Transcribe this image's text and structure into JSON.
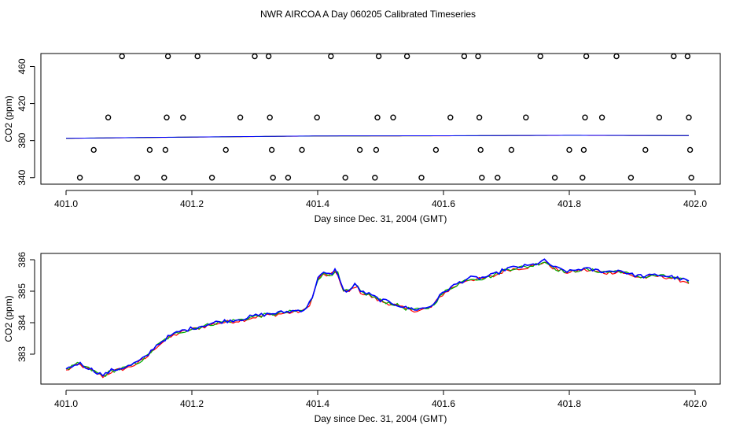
{
  "title": "NWR AIRCOA A  Day 060205  Calibrated Timeseries",
  "chart_data": [
    {
      "type": "scatter",
      "xlabel": "Day since Dec. 31, 2004 (GMT)",
      "ylabel": "CO2 (ppm)",
      "xlim": [
        401.0,
        402.0
      ],
      "ylim": [
        333,
        474
      ],
      "xticks": [
        401.0,
        401.2,
        401.4,
        401.6,
        401.8,
        402.0
      ],
      "xtick_labels": [
        "401.0",
        "401.2",
        "401.4",
        "401.6",
        "401.8",
        "402.0"
      ],
      "yticks": [
        340,
        380,
        420,
        460
      ],
      "ytick_labels": [
        "340",
        "380",
        "420",
        "460"
      ],
      "grid": false,
      "points_color": "#000000",
      "points": [
        {
          "x": 401.022,
          "y": 340
        },
        {
          "x": 401.044,
          "y": 370
        },
        {
          "x": 401.067,
          "y": 405
        },
        {
          "x": 401.089,
          "y": 471
        },
        {
          "x": 401.113,
          "y": 340
        },
        {
          "x": 401.133,
          "y": 370
        },
        {
          "x": 401.156,
          "y": 340
        },
        {
          "x": 401.158,
          "y": 370
        },
        {
          "x": 401.16,
          "y": 405
        },
        {
          "x": 401.162,
          "y": 471
        },
        {
          "x": 401.186,
          "y": 405
        },
        {
          "x": 401.209,
          "y": 471
        },
        {
          "x": 401.232,
          "y": 340
        },
        {
          "x": 401.254,
          "y": 370
        },
        {
          "x": 401.277,
          "y": 405
        },
        {
          "x": 401.3,
          "y": 471
        },
        {
          "x": 401.322,
          "y": 471
        },
        {
          "x": 401.324,
          "y": 405
        },
        {
          "x": 401.327,
          "y": 370
        },
        {
          "x": 401.329,
          "y": 340
        },
        {
          "x": 401.353,
          "y": 340
        },
        {
          "x": 401.375,
          "y": 370
        },
        {
          "x": 401.399,
          "y": 405
        },
        {
          "x": 401.421,
          "y": 471
        },
        {
          "x": 401.444,
          "y": 340
        },
        {
          "x": 401.467,
          "y": 370
        },
        {
          "x": 401.491,
          "y": 340
        },
        {
          "x": 401.493,
          "y": 370
        },
        {
          "x": 401.495,
          "y": 405
        },
        {
          "x": 401.497,
          "y": 471
        },
        {
          "x": 401.52,
          "y": 405
        },
        {
          "x": 401.542,
          "y": 471
        },
        {
          "x": 401.565,
          "y": 340
        },
        {
          "x": 401.588,
          "y": 370
        },
        {
          "x": 401.611,
          "y": 405
        },
        {
          "x": 401.633,
          "y": 471
        },
        {
          "x": 401.655,
          "y": 471
        },
        {
          "x": 401.657,
          "y": 405
        },
        {
          "x": 401.659,
          "y": 370
        },
        {
          "x": 401.661,
          "y": 340
        },
        {
          "x": 401.686,
          "y": 340
        },
        {
          "x": 401.708,
          "y": 370
        },
        {
          "x": 401.731,
          "y": 405
        },
        {
          "x": 401.754,
          "y": 471
        },
        {
          "x": 401.777,
          "y": 340
        },
        {
          "x": 401.8,
          "y": 370
        },
        {
          "x": 401.821,
          "y": 340
        },
        {
          "x": 401.823,
          "y": 370
        },
        {
          "x": 401.825,
          "y": 405
        },
        {
          "x": 401.827,
          "y": 471
        },
        {
          "x": 401.852,
          "y": 405
        },
        {
          "x": 401.875,
          "y": 471
        },
        {
          "x": 401.898,
          "y": 340
        },
        {
          "x": 401.921,
          "y": 370
        },
        {
          "x": 401.943,
          "y": 405
        },
        {
          "x": 401.966,
          "y": 471
        },
        {
          "x": 401.988,
          "y": 471
        },
        {
          "x": 401.99,
          "y": 405
        },
        {
          "x": 401.992,
          "y": 370
        },
        {
          "x": 401.994,
          "y": 340
        }
      ],
      "baseline": {
        "colors": [
          "#ff0000",
          "#00b000",
          "#0000ff"
        ],
        "x": [
          401.0,
          401.2,
          401.4,
          401.6,
          401.8,
          401.99
        ],
        "y": [
          382.5,
          383.8,
          385.0,
          385.2,
          385.7,
          385.4
        ]
      }
    },
    {
      "type": "line",
      "xlabel": "Day since Dec. 31, 2004 (GMT)",
      "ylabel": "CO2 (ppm)",
      "xlim": [
        401.0,
        402.0
      ],
      "ylim": [
        382.05,
        386.2
      ],
      "xticks": [
        401.0,
        401.2,
        401.4,
        401.6,
        401.8,
        402.0
      ],
      "xtick_labels": [
        "401.0",
        "401.2",
        "401.4",
        "401.6",
        "401.8",
        "402.0"
      ],
      "yticks": [
        383,
        384,
        385,
        386
      ],
      "ytick_labels": [
        "383",
        "384",
        "385",
        "386"
      ],
      "grid": false,
      "series_colors": [
        "#ff0000",
        "#00b000",
        "#0000ff"
      ],
      "base": {
        "x": [
          401.0,
          401.01,
          401.02,
          401.03,
          401.04,
          401.05,
          401.06,
          401.07,
          401.08,
          401.09,
          401.1,
          401.11,
          401.12,
          401.13,
          401.14,
          401.15,
          401.16,
          401.17,
          401.18,
          401.19,
          401.2,
          401.22,
          401.24,
          401.26,
          401.28,
          401.3,
          401.32,
          401.34,
          401.36,
          401.38,
          401.39,
          401.4,
          401.41,
          401.42,
          401.43,
          401.44,
          401.45,
          401.46,
          401.47,
          401.48,
          401.5,
          401.52,
          401.54,
          401.56,
          401.58,
          401.6,
          401.62,
          401.64,
          401.66,
          401.68,
          401.7,
          401.72,
          401.74,
          401.76,
          401.78,
          401.8,
          401.82,
          401.84,
          401.86,
          401.88,
          401.9,
          401.92,
          401.94,
          401.96,
          401.98,
          401.99
        ],
        "y": [
          382.5,
          382.6,
          382.7,
          382.6,
          382.5,
          382.4,
          382.3,
          382.45,
          382.5,
          382.55,
          382.6,
          382.7,
          382.8,
          382.95,
          383.2,
          383.35,
          383.5,
          383.6,
          383.7,
          383.75,
          383.8,
          383.9,
          384.0,
          384.05,
          384.1,
          384.2,
          384.25,
          384.3,
          384.35,
          384.4,
          384.7,
          385.4,
          385.55,
          385.5,
          385.7,
          385.0,
          385.0,
          385.2,
          384.95,
          384.9,
          384.7,
          384.6,
          384.45,
          384.4,
          384.5,
          384.95,
          385.2,
          385.4,
          385.4,
          385.5,
          385.7,
          385.75,
          385.8,
          385.95,
          385.7,
          385.6,
          385.7,
          385.65,
          385.6,
          385.65,
          385.5,
          385.45,
          385.5,
          385.45,
          385.35,
          385.3
        ]
      }
    }
  ]
}
